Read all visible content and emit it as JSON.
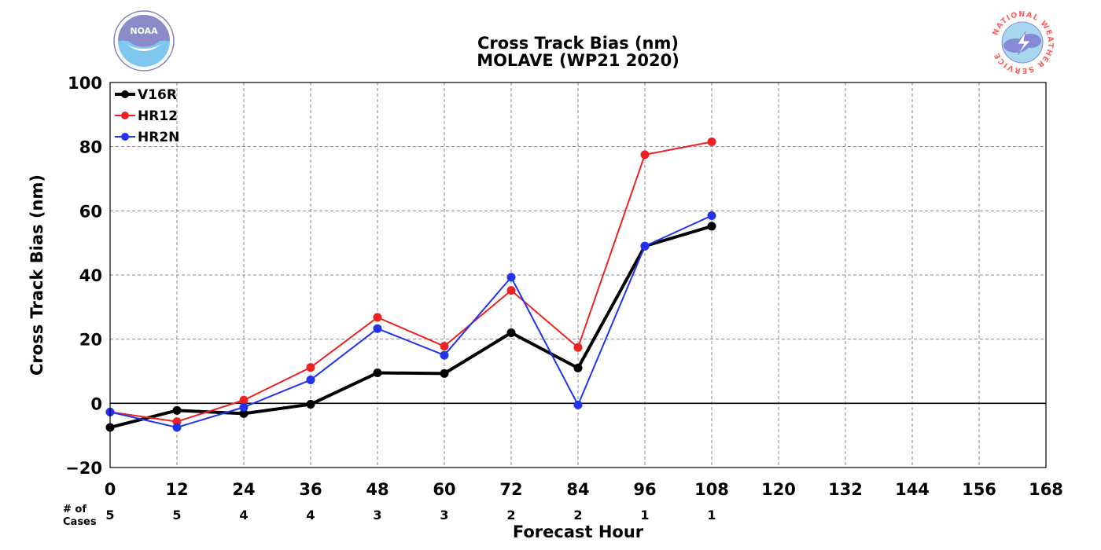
{
  "logos": {
    "left": {
      "name": "noaa-logo",
      "text": "NOAA",
      "colors": {
        "ring": "#8080c0",
        "sky": "#7ec8f0",
        "top": "#8a8ac8"
      }
    },
    "right": {
      "name": "nws-logo",
      "text": "NATIONAL WEATHER SERVICE",
      "colors": {
        "ring": "#ff6060",
        "sky": "#a8d8f0",
        "cloud": "#8888d8"
      }
    }
  },
  "chart_data": {
    "type": "line",
    "title": "Cross Track Bias (nm)",
    "subtitle": "MOLAVE (WP21 2020)",
    "xlabel": "Forecast Hour",
    "ylabel": "Cross Track Bias (nm)",
    "xlim": [
      0,
      168
    ],
    "ylim": [
      -20,
      100
    ],
    "xticks": [
      0,
      12,
      24,
      36,
      48,
      60,
      72,
      84,
      96,
      108,
      120,
      132,
      144,
      156,
      168
    ],
    "xtick_labels": [
      "0",
      "12",
      "24",
      "36",
      "48",
      "60",
      "72",
      "84",
      "96",
      "108",
      "120",
      "132",
      "144",
      "156",
      "168"
    ],
    "yticks": [
      -20,
      0,
      20,
      40,
      60,
      80,
      100
    ],
    "ytick_labels": [
      "−20",
      "0",
      "20",
      "40",
      "60",
      "80",
      "100"
    ],
    "grid": true,
    "zero_line": true,
    "legend_position": "top-left",
    "series": [
      {
        "name": "V16R",
        "color": "#000000",
        "width": 4,
        "x": [
          0,
          12,
          24,
          36,
          48,
          60,
          72,
          84,
          96,
          108
        ],
        "values": [
          -7.5,
          -2.2,
          -3.2,
          -0.3,
          9.5,
          9.3,
          22.0,
          11.0,
          49.0,
          55.2
        ]
      },
      {
        "name": "HR12",
        "color": "#ee2222",
        "width": 2,
        "x": [
          0,
          12,
          24,
          36,
          48,
          60,
          72,
          84,
          96,
          108
        ],
        "values": [
          -2.7,
          -5.7,
          1.0,
          11.2,
          26.8,
          17.8,
          35.2,
          17.4,
          77.5,
          81.5
        ]
      },
      {
        "name": "HR2N",
        "color": "#2233ee",
        "width": 2,
        "x": [
          0,
          12,
          24,
          36,
          48,
          60,
          72,
          84,
          96,
          108
        ],
        "values": [
          -2.7,
          -7.5,
          -1.2,
          7.3,
          23.3,
          15.0,
          39.3,
          -0.5,
          49.0,
          58.5
        ]
      }
    ],
    "cases": {
      "label_line1": "# of",
      "label_line2": "Cases",
      "x": [
        0,
        12,
        24,
        36,
        48,
        60,
        72,
        84,
        96,
        108
      ],
      "counts": [
        "5",
        "5",
        "4",
        "4",
        "3",
        "3",
        "2",
        "2",
        "1",
        "1"
      ]
    }
  }
}
